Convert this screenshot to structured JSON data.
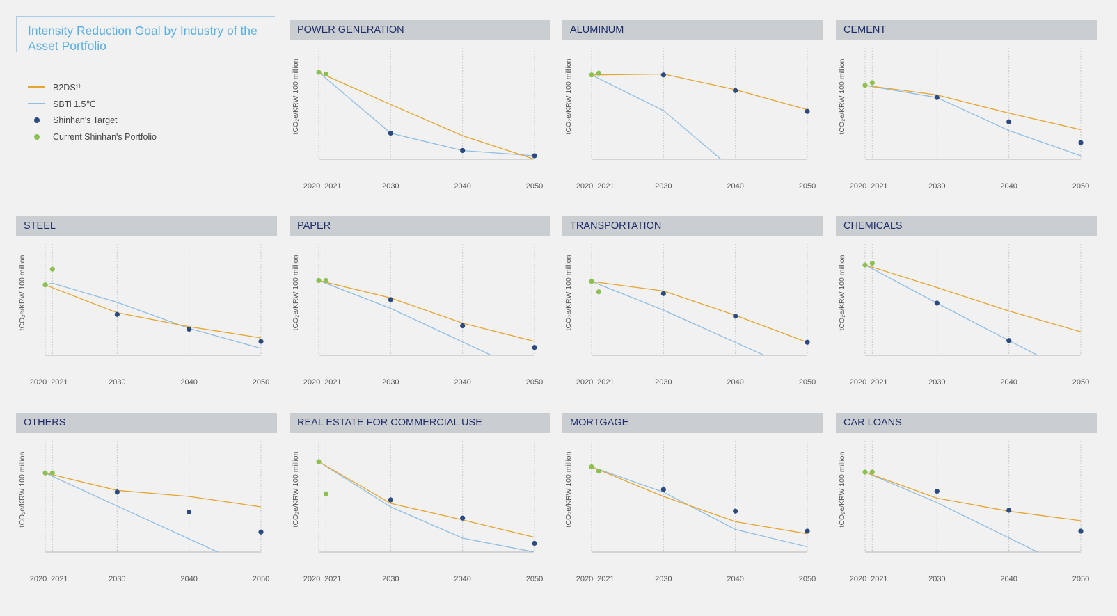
{
  "legend": {
    "title": "Intensity Reduction Goal by Industry of the Asset Portfolio",
    "items": [
      {
        "label": "B2DS¹⁾",
        "kind": "line",
        "color": "#e4a531"
      },
      {
        "label": "SBTi 1.5℃",
        "kind": "line",
        "color": "#8fbde3"
      },
      {
        "label": "Shinhan's Target",
        "kind": "dot",
        "color": "#2d4a7e"
      },
      {
        "label": "Current Shinhan's Portfolio",
        "kind": "dot",
        "color": "#8cc152"
      }
    ]
  },
  "colors": {
    "b2ds": "#e4a531",
    "sbti": "#8fbde3",
    "target": "#2d4a7e",
    "current": "#8cc152",
    "header_bg": "#cbced1",
    "header_text": "#1c2c6a"
  },
  "ylabel": "tCO₂e/KRW 100 million",
  "x_ticks": [
    2020,
    2021,
    2030,
    2040,
    2050
  ],
  "chart_data": [
    {
      "title": "POWER GENERATION",
      "type": "line",
      "ylim": [
        0,
        100
      ],
      "b2ds": [
        [
          2020,
          100
        ],
        [
          2030,
          63
        ],
        [
          2040,
          27
        ],
        [
          2050,
          0
        ]
      ],
      "sbti": [
        [
          2020,
          100
        ],
        [
          2030,
          30
        ],
        [
          2040,
          10
        ],
        [
          2050,
          4
        ]
      ],
      "target": [
        [
          2030,
          30
        ],
        [
          2040,
          10
        ],
        [
          2050,
          4
        ]
      ],
      "current": [
        [
          2020,
          100
        ],
        [
          2021,
          98
        ]
      ]
    },
    {
      "title": "ALUMINUM",
      "type": "line",
      "ylim": [
        0,
        100
      ],
      "b2ds": [
        [
          2020,
          97
        ],
        [
          2030,
          98
        ],
        [
          2040,
          80
        ],
        [
          2050,
          57
        ]
      ],
      "sbti": [
        [
          2020,
          97
        ],
        [
          2030,
          56
        ],
        [
          2038,
          0
        ]
      ],
      "target": [
        [
          2030,
          97
        ],
        [
          2040,
          79
        ],
        [
          2050,
          55
        ]
      ],
      "current": [
        [
          2020,
          97
        ],
        [
          2021,
          99
        ]
      ]
    },
    {
      "title": "CEMENT",
      "type": "line",
      "ylim": [
        0,
        100
      ],
      "b2ds": [
        [
          2020,
          85
        ],
        [
          2030,
          74
        ],
        [
          2040,
          53
        ],
        [
          2050,
          34
        ]
      ],
      "sbti": [
        [
          2020,
          85
        ],
        [
          2030,
          71
        ],
        [
          2040,
          33
        ],
        [
          2050,
          4
        ]
      ],
      "target": [
        [
          2030,
          71
        ],
        [
          2040,
          43
        ],
        [
          2050,
          19
        ]
      ],
      "current": [
        [
          2020,
          85
        ],
        [
          2021,
          88
        ]
      ]
    },
    {
      "title": "STEEL",
      "type": "line",
      "ylim": [
        0,
        100
      ],
      "b2ds": [
        [
          2020,
          81
        ],
        [
          2030,
          49
        ],
        [
          2040,
          33
        ],
        [
          2050,
          20
        ]
      ],
      "sbti": [
        [
          2020,
          81
        ],
        [
          2021,
          83
        ],
        [
          2030,
          61
        ],
        [
          2040,
          31
        ],
        [
          2050,
          8
        ]
      ],
      "target": [
        [
          2030,
          47
        ],
        [
          2040,
          30
        ],
        [
          2050,
          16
        ]
      ],
      "current": [
        [
          2020,
          81
        ],
        [
          2021,
          99
        ]
      ]
    },
    {
      "title": "PAPER",
      "type": "line",
      "ylim": [
        0,
        100
      ],
      "b2ds": [
        [
          2020,
          86
        ],
        [
          2030,
          66
        ],
        [
          2040,
          37
        ],
        [
          2050,
          16
        ]
      ],
      "sbti": [
        [
          2020,
          86
        ],
        [
          2030,
          54
        ],
        [
          2044,
          0
        ]
      ],
      "target": [
        [
          2030,
          64
        ],
        [
          2040,
          34
        ],
        [
          2050,
          9
        ]
      ],
      "current": [
        [
          2020,
          86
        ],
        [
          2021,
          86
        ]
      ]
    },
    {
      "title": "TRANSPORTATION",
      "type": "line",
      "ylim": [
        0,
        100
      ],
      "b2ds": [
        [
          2020,
          85
        ],
        [
          2030,
          74
        ],
        [
          2040,
          46
        ],
        [
          2050,
          15
        ]
      ],
      "sbti": [
        [
          2020,
          85
        ],
        [
          2030,
          52
        ],
        [
          2044,
          0
        ]
      ],
      "target": [
        [
          2030,
          71
        ],
        [
          2040,
          45
        ],
        [
          2050,
          15
        ]
      ],
      "current": [
        [
          2020,
          85
        ],
        [
          2021,
          73
        ]
      ]
    },
    {
      "title": "CHEMICALS",
      "type": "line",
      "ylim": [
        0,
        100
      ],
      "b2ds": [
        [
          2020,
          104
        ],
        [
          2030,
          78
        ],
        [
          2040,
          51
        ],
        [
          2050,
          27
        ]
      ],
      "sbti": [
        [
          2020,
          104
        ],
        [
          2030,
          60
        ],
        [
          2040,
          17
        ],
        [
          2044,
          0
        ]
      ],
      "target": [
        [
          2030,
          60
        ],
        [
          2040,
          17
        ]
      ],
      "current": [
        [
          2020,
          104
        ],
        [
          2021,
          106
        ]
      ]
    },
    {
      "title": "OTHERS",
      "type": "line",
      "ylim": [
        0,
        100
      ],
      "b2ds": [
        [
          2020,
          91
        ],
        [
          2030,
          71
        ],
        [
          2040,
          64
        ],
        [
          2050,
          52
        ]
      ],
      "sbti": [
        [
          2020,
          91
        ],
        [
          2030,
          53
        ],
        [
          2044,
          0
        ]
      ],
      "target": [
        [
          2030,
          69
        ],
        [
          2040,
          46
        ],
        [
          2050,
          23
        ]
      ],
      "current": [
        [
          2020,
          91
        ],
        [
          2021,
          91
        ]
      ]
    },
    {
      "title": "REAL ESTATE FOR COMMERCIAL USE",
      "type": "line",
      "ylim": [
        0,
        100
      ],
      "b2ds": [
        [
          2020,
          104
        ],
        [
          2030,
          56
        ],
        [
          2040,
          37
        ],
        [
          2050,
          17
        ]
      ],
      "sbti": [
        [
          2020,
          104
        ],
        [
          2030,
          52
        ],
        [
          2040,
          16
        ],
        [
          2050,
          0
        ]
      ],
      "target": [
        [
          2030,
          60
        ],
        [
          2040,
          39
        ],
        [
          2050,
          10
        ]
      ],
      "current": [
        [
          2020,
          104
        ],
        [
          2021,
          67
        ]
      ]
    },
    {
      "title": "MORTGAGE",
      "type": "line",
      "ylim": [
        0,
        100
      ],
      "b2ds": [
        [
          2020,
          98
        ],
        [
          2030,
          64
        ],
        [
          2040,
          35
        ],
        [
          2050,
          21
        ]
      ],
      "sbti": [
        [
          2020,
          98
        ],
        [
          2030,
          69
        ],
        [
          2040,
          26
        ],
        [
          2050,
          6
        ]
      ],
      "target": [
        [
          2030,
          72
        ],
        [
          2040,
          47
        ],
        [
          2050,
          24
        ]
      ],
      "current": [
        [
          2020,
          98
        ],
        [
          2021,
          93
        ]
      ]
    },
    {
      "title": "CAR LOANS",
      "type": "line",
      "ylim": [
        0,
        100
      ],
      "b2ds": [
        [
          2020,
          92
        ],
        [
          2030,
          62
        ],
        [
          2040,
          47
        ],
        [
          2050,
          36
        ]
      ],
      "sbti": [
        [
          2020,
          92
        ],
        [
          2030,
          57
        ],
        [
          2044,
          0
        ]
      ],
      "target": [
        [
          2030,
          70
        ],
        [
          2040,
          48
        ],
        [
          2050,
          24
        ]
      ],
      "current": [
        [
          2020,
          92
        ],
        [
          2021,
          92
        ]
      ]
    }
  ]
}
